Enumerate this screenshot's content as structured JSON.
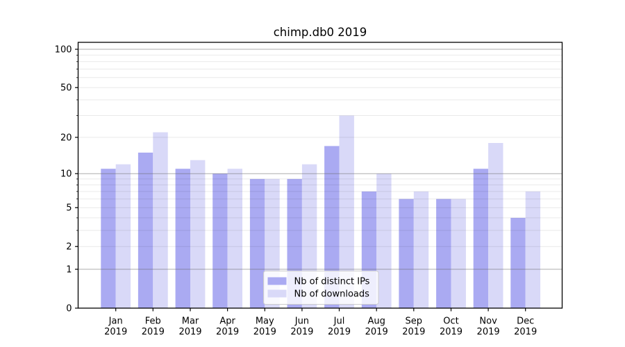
{
  "title": "chimp.db0 2019",
  "chart_data": {
    "type": "bar",
    "title": "chimp.db0 2019",
    "categories": [
      "Jan 2019",
      "Feb 2019",
      "Mar 2019",
      "Apr 2019",
      "May 2019",
      "Jun 2019",
      "Jul 2019",
      "Aug 2019",
      "Sep 2019",
      "Oct 2019",
      "Nov 2019",
      "Dec 2019"
    ],
    "series": [
      {
        "name": "Nb of distinct IPs",
        "color": "#aaaaf2",
        "values": [
          11,
          15,
          11,
          10,
          9,
          9,
          17,
          7,
          6,
          6,
          11,
          4
        ]
      },
      {
        "name": "Nb of downloads",
        "color": "#d9d9f8",
        "values": [
          12,
          22,
          13,
          11,
          9,
          12,
          30,
          10,
          7,
          6,
          18,
          7
        ]
      }
    ],
    "xlabel": "",
    "ylabel": "",
    "yscale": "log1p",
    "ylim": [
      0,
      113.3
    ],
    "yticks": [
      100,
      50,
      20,
      10,
      5,
      2,
      1,
      0
    ],
    "ytick_labels": [
      "100",
      "50",
      "20",
      "10",
      "5",
      "2",
      "1",
      "0"
    ],
    "major_gridlines": [
      1,
      10,
      100
    ],
    "minor_gridlines": [
      2,
      3,
      4,
      5,
      6,
      7,
      8,
      9,
      20,
      30,
      40,
      50,
      60,
      70,
      80,
      90
    ],
    "grid": true,
    "legend": {
      "position": "lower center",
      "labels": [
        "Nb of distinct IPs",
        "Nb of downloads"
      ]
    }
  },
  "colors": {
    "background": "#ffffff",
    "bar_ips": "#aaaaf2",
    "bar_downloads": "#d9d9f8",
    "spine": "#000000",
    "major_grid": "#b0b0b0",
    "minor_grid": "#ebebeb",
    "legend_border": "#cccccc",
    "legend_bg": "rgba(255,255,255,0.8)"
  }
}
